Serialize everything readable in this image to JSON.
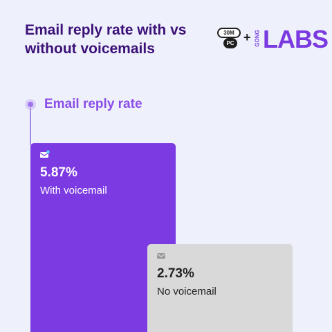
{
  "title": "Email reply rate with vs without voicemails",
  "logo": {
    "badge_top": "30M",
    "badge_bottom": "PC",
    "plus": "+",
    "gong": "GONG",
    "labs": "LABS"
  },
  "chart_data": {
    "type": "bar",
    "ylabel": "Email reply rate",
    "categories": [
      "With voicemail",
      "No voicemail"
    ],
    "values": [
      5.87,
      2.73
    ],
    "value_labels": [
      "5.87%",
      "2.73%"
    ],
    "unit": "%",
    "colors": [
      "#7c3ae3",
      "#d9d9d9"
    ],
    "icon": "envelope-icon"
  }
}
